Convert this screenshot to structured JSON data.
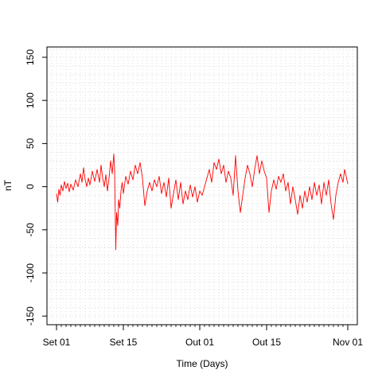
{
  "chart_data": {
    "type": "line",
    "title": "",
    "xlabel": "Time (Days)",
    "ylabel": "nT",
    "xlim": [
      "2000-08-30",
      "2000-11-03"
    ],
    "ylim": [
      -160,
      162
    ],
    "x_tick_labels": [
      {
        "date": "2000-09-01",
        "label": "Set 01"
      },
      {
        "date": "2000-09-15",
        "label": "Set 15"
      },
      {
        "date": "2000-10-01",
        "label": "Out 01"
      },
      {
        "date": "2000-10-15",
        "label": "Out 15"
      },
      {
        "date": "2000-11-01",
        "label": "Nov 01"
      }
    ],
    "y_ticks": [
      -150,
      -100,
      -50,
      0,
      50,
      100,
      150
    ],
    "grid": true,
    "series": [
      {
        "color": "#ff0000",
        "points": [
          [
            "2000-09-01",
            -8
          ],
          [
            "2000-09-01T06:00",
            -18
          ],
          [
            "2000-09-01T12:00",
            -3
          ],
          [
            "2000-09-01T18:00",
            -10
          ],
          [
            "2000-09-02",
            2
          ],
          [
            "2000-09-02T08:00",
            -5
          ],
          [
            "2000-09-02T16:00",
            6
          ],
          [
            "2000-09-03",
            -2
          ],
          [
            "2000-09-03T08:00",
            4
          ],
          [
            "2000-09-03T16:00",
            -6
          ],
          [
            "2000-09-04",
            3
          ],
          [
            "2000-09-04T12:00",
            -4
          ],
          [
            "2000-09-05",
            8
          ],
          [
            "2000-09-05T12:00",
            0
          ],
          [
            "2000-09-06",
            15
          ],
          [
            "2000-09-06T08:00",
            5
          ],
          [
            "2000-09-06T16:00",
            22
          ],
          [
            "2000-09-07",
            8
          ],
          [
            "2000-09-07T08:00",
            0
          ],
          [
            "2000-09-07T16:00",
            10
          ],
          [
            "2000-09-08",
            2
          ],
          [
            "2000-09-08T12:00",
            18
          ],
          [
            "2000-09-09",
            6
          ],
          [
            "2000-09-09T12:00",
            20
          ],
          [
            "2000-09-10",
            5
          ],
          [
            "2000-09-10T08:00",
            25
          ],
          [
            "2000-09-10T16:00",
            10
          ],
          [
            "2000-09-11",
            0
          ],
          [
            "2000-09-11T08:00",
            14
          ],
          [
            "2000-09-11T16:00",
            -5
          ],
          [
            "2000-09-12",
            10
          ],
          [
            "2000-09-12T08:00",
            30
          ],
          [
            "2000-09-12T16:00",
            15
          ],
          [
            "2000-09-13",
            38
          ],
          [
            "2000-09-13T04:00",
            20
          ],
          [
            "2000-09-13T08:00",
            -40
          ],
          [
            "2000-09-13T10:00",
            -73
          ],
          [
            "2000-09-13T14:00",
            -30
          ],
          [
            "2000-09-13T20:00",
            -45
          ],
          [
            "2000-09-14",
            -15
          ],
          [
            "2000-09-14T06:00",
            -25
          ],
          [
            "2000-09-14T12:00",
            -5
          ],
          [
            "2000-09-14T18:00",
            5
          ],
          [
            "2000-09-15",
            -8
          ],
          [
            "2000-09-15T12:00",
            12
          ],
          [
            "2000-09-16",
            3
          ],
          [
            "2000-09-16T12:00",
            18
          ],
          [
            "2000-09-17",
            8
          ],
          [
            "2000-09-17T12:00",
            25
          ],
          [
            "2000-09-18",
            15
          ],
          [
            "2000-09-18T12:00",
            28
          ],
          [
            "2000-09-19",
            10
          ],
          [
            "2000-09-19T12:00",
            -22
          ],
          [
            "2000-09-20",
            -5
          ],
          [
            "2000-09-20T12:00",
            5
          ],
          [
            "2000-09-21",
            -5
          ],
          [
            "2000-09-21T12:00",
            8
          ],
          [
            "2000-09-22",
            0
          ],
          [
            "2000-09-22T12:00",
            12
          ],
          [
            "2000-09-23",
            -8
          ],
          [
            "2000-09-23T12:00",
            5
          ],
          [
            "2000-09-24",
            -12
          ],
          [
            "2000-09-24T12:00",
            10
          ],
          [
            "2000-09-25",
            -25
          ],
          [
            "2000-09-25T12:00",
            -8
          ],
          [
            "2000-09-26",
            8
          ],
          [
            "2000-09-26T12:00",
            -15
          ],
          [
            "2000-09-27",
            5
          ],
          [
            "2000-09-27T12:00",
            -20
          ],
          [
            "2000-09-28",
            -5
          ],
          [
            "2000-09-28T12:00",
            -15
          ],
          [
            "2000-09-29",
            2
          ],
          [
            "2000-09-29T12:00",
            -12
          ],
          [
            "2000-09-30",
            0
          ],
          [
            "2000-09-30T12:00",
            -18
          ],
          [
            "2000-10-01",
            -5
          ],
          [
            "2000-10-01T12:00",
            -10
          ],
          [
            "2000-10-02",
            0
          ],
          [
            "2000-10-02T12:00",
            10
          ],
          [
            "2000-10-03",
            20
          ],
          [
            "2000-10-03T12:00",
            5
          ],
          [
            "2000-10-04",
            28
          ],
          [
            "2000-10-04T12:00",
            20
          ],
          [
            "2000-10-05",
            32
          ],
          [
            "2000-10-05T12:00",
            15
          ],
          [
            "2000-10-06",
            25
          ],
          [
            "2000-10-06T12:00",
            5
          ],
          [
            "2000-10-07",
            18
          ],
          [
            "2000-10-07T12:00",
            10
          ],
          [
            "2000-10-08",
            -10
          ],
          [
            "2000-10-08T12:00",
            36
          ],
          [
            "2000-10-09",
            -5
          ],
          [
            "2000-10-09T12:00",
            -30
          ],
          [
            "2000-10-10",
            -10
          ],
          [
            "2000-10-10T12:00",
            10
          ],
          [
            "2000-10-11",
            25
          ],
          [
            "2000-10-11T12:00",
            15
          ],
          [
            "2000-10-12",
            0
          ],
          [
            "2000-10-12T12:00",
            20
          ],
          [
            "2000-10-13",
            36
          ],
          [
            "2000-10-13T12:00",
            15
          ],
          [
            "2000-10-14",
            30
          ],
          [
            "2000-10-14T12:00",
            18
          ],
          [
            "2000-10-15",
            10
          ],
          [
            "2000-10-15T12:00",
            -30
          ],
          [
            "2000-10-16",
            -5
          ],
          [
            "2000-10-16T12:00",
            8
          ],
          [
            "2000-10-17",
            -3
          ],
          [
            "2000-10-17T12:00",
            12
          ],
          [
            "2000-10-18",
            5
          ],
          [
            "2000-10-18T12:00",
            15
          ],
          [
            "2000-10-19",
            -5
          ],
          [
            "2000-10-19T12:00",
            5
          ],
          [
            "2000-10-20",
            -20
          ],
          [
            "2000-10-20T12:00",
            0
          ],
          [
            "2000-10-21",
            -15
          ],
          [
            "2000-10-21T12:00",
            -32
          ],
          [
            "2000-10-22",
            -10
          ],
          [
            "2000-10-22T12:00",
            -25
          ],
          [
            "2000-10-23",
            -5
          ],
          [
            "2000-10-23T12:00",
            -18
          ],
          [
            "2000-10-24",
            0
          ],
          [
            "2000-10-24T12:00",
            -15
          ],
          [
            "2000-10-25",
            5
          ],
          [
            "2000-10-25T12:00",
            -10
          ],
          [
            "2000-10-26",
            2
          ],
          [
            "2000-10-26T12:00",
            -20
          ],
          [
            "2000-10-27",
            5
          ],
          [
            "2000-10-27T12:00",
            -10
          ],
          [
            "2000-10-28",
            8
          ],
          [
            "2000-10-28T12:00",
            -20
          ],
          [
            "2000-10-29",
            -38
          ],
          [
            "2000-10-29T12:00",
            -10
          ],
          [
            "2000-10-30",
            5
          ],
          [
            "2000-10-30T12:00",
            15
          ],
          [
            "2000-10-31",
            5
          ],
          [
            "2000-10-31T08:00",
            20
          ],
          [
            "2000-10-31T16:00",
            12
          ],
          [
            "2000-11-01",
            3
          ]
        ]
      }
    ]
  }
}
